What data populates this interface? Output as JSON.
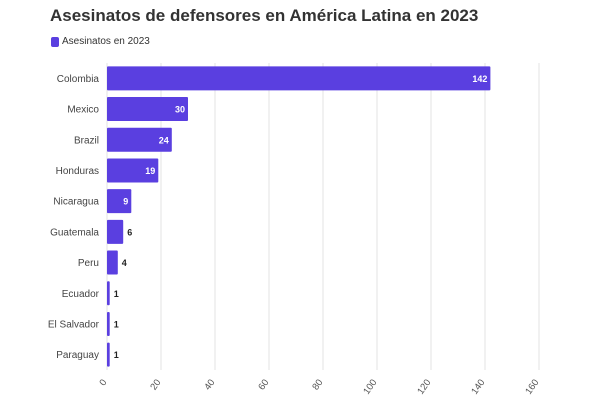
{
  "chart_data": {
    "type": "bar",
    "orientation": "horizontal",
    "title": "Asesinatos de defensores en América Latina en 2023",
    "legend_position": "top-left",
    "grid": true,
    "categories": [
      "Colombia",
      "Mexico",
      "Brazil",
      "Honduras",
      "Nicaragua",
      "Guatemala",
      "Peru",
      "Ecuador",
      "El Salvador",
      "Paraguay"
    ],
    "series": [
      {
        "name": "Asesinatos en 2023",
        "color": "#5a3fe0",
        "values": [
          142,
          30,
          24,
          19,
          9,
          6,
          4,
          1,
          1,
          1
        ]
      }
    ],
    "xlim": [
      0,
      160
    ],
    "xticks": [
      0,
      20,
      40,
      60,
      80,
      100,
      120,
      140,
      160
    ]
  }
}
